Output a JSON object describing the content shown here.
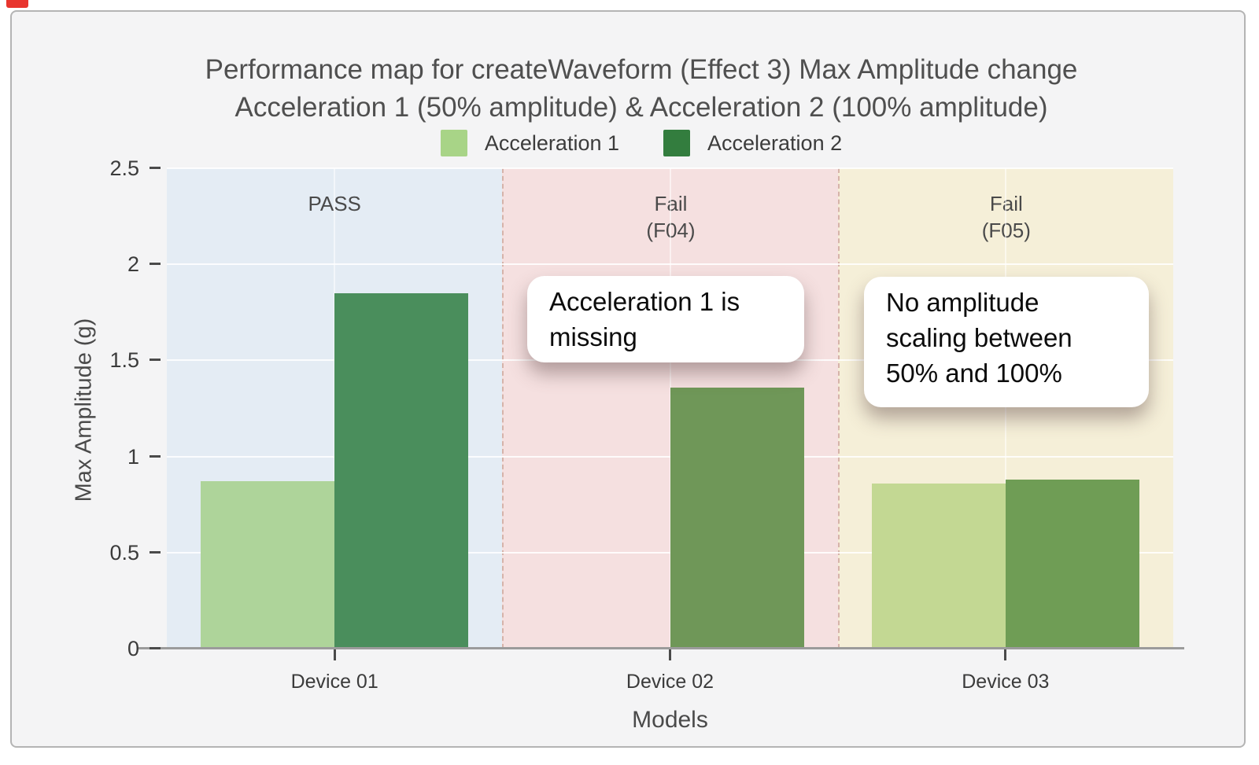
{
  "window": {
    "recording_indicator_color": "#e8352e",
    "card_background": "#f4f4f5",
    "card_border": "#b4b4b4"
  },
  "chart_data": {
    "type": "bar",
    "title": "Performance map for createWaveform (Effect 3) Max Amplitude change",
    "subtitle": "Acceleration 1 (50% amplitude) & Acceleration 2 (100% amplitude)",
    "xlabel": "Models",
    "ylabel": "Max Amplitude (g)",
    "ylim": [
      0,
      2.5
    ],
    "grid": true,
    "legend_position": "top",
    "ytick_values": [
      0,
      0.5,
      1,
      1.5,
      2,
      2.5
    ],
    "ytick_labels": [
      "0",
      "0.5",
      "1",
      "1.5",
      "2",
      "2.5"
    ],
    "categories": [
      "Device 01",
      "Device 02",
      "Device 03"
    ],
    "series": [
      {
        "name": "Acceleration 1",
        "legend_color": "#a8d487",
        "values": [
          0.87,
          null,
          0.86
        ],
        "bar_colors": [
          "#aed49a",
          null,
          "#c3d893"
        ]
      },
      {
        "name": "Acceleration 2",
        "legend_color": "#337d3e",
        "values": [
          1.85,
          1.36,
          0.88
        ],
        "bar_colors": [
          "#4a8e5c",
          "#6f9758",
          "#6f9d55"
        ]
      }
    ],
    "zones": [
      {
        "lines": [
          "PASS"
        ],
        "fill": "#e4ecf4"
      },
      {
        "lines": [
          "Fail",
          "(F04)"
        ],
        "fill": "#f5e0e0"
      },
      {
        "lines": [
          "Fail",
          "(F05)"
        ],
        "fill": "#f5efd8"
      }
    ],
    "annotations": [
      {
        "lines": [
          "Acceleration 1 is",
          "missing"
        ]
      },
      {
        "lines": [
          "No amplitude",
          "scaling between",
          "50% and 100%"
        ]
      }
    ]
  }
}
